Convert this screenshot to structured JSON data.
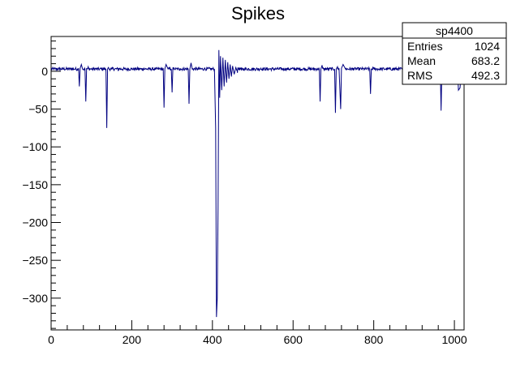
{
  "chart_data": {
    "type": "line",
    "title": "Spikes",
    "xlabel": "",
    "ylabel": "",
    "xlim": [
      0,
      1024
    ],
    "ylim": [
      -342,
      46
    ],
    "x_ticks": [
      0,
      200,
      400,
      600,
      800,
      1000
    ],
    "y_ticks": [
      0,
      -50,
      -100,
      -150,
      -200,
      -250,
      -300
    ],
    "x_tick_labels": [
      "0",
      "200",
      "400",
      "600",
      "800",
      "1000"
    ],
    "y_tick_labels": [
      "0",
      "−50",
      "−100",
      "−150",
      "−200",
      "−250",
      "−300"
    ],
    "grid": false,
    "line_color": "#000080",
    "baseline": 3,
    "series": [
      {
        "points": [
          [
            0,
            3
          ],
          [
            20,
            3
          ],
          [
            40,
            4
          ],
          [
            60,
            3
          ],
          [
            68,
            4
          ],
          [
            70,
            -20
          ],
          [
            72,
            4
          ],
          [
            75,
            9
          ],
          [
            78,
            3
          ],
          [
            84,
            3
          ],
          [
            86,
            -40
          ],
          [
            88,
            4
          ],
          [
            92,
            6
          ],
          [
            100,
            3
          ],
          [
            110,
            4
          ],
          [
            120,
            3
          ],
          [
            130,
            4
          ],
          [
            136,
            3
          ],
          [
            138,
            -75
          ],
          [
            140,
            3
          ],
          [
            142,
            5
          ],
          [
            150,
            3
          ],
          [
            170,
            4
          ],
          [
            200,
            3
          ],
          [
            230,
            4
          ],
          [
            260,
            3
          ],
          [
            278,
            3
          ],
          [
            280,
            -48
          ],
          [
            282,
            3
          ],
          [
            285,
            9
          ],
          [
            290,
            3
          ],
          [
            298,
            3
          ],
          [
            300,
            -28
          ],
          [
            302,
            5
          ],
          [
            306,
            3
          ],
          [
            320,
            4
          ],
          [
            340,
            3
          ],
          [
            342,
            -43
          ],
          [
            344,
            3
          ],
          [
            347,
            11
          ],
          [
            350,
            3
          ],
          [
            380,
            4
          ],
          [
            400,
            3
          ],
          [
            405,
            3
          ],
          [
            408,
            -75
          ],
          [
            410,
            -325
          ],
          [
            412,
            -300
          ],
          [
            414,
            -180
          ],
          [
            416,
            28
          ],
          [
            418,
            -35
          ],
          [
            420,
            20
          ],
          [
            423,
            -25
          ],
          [
            426,
            18
          ],
          [
            429,
            -20
          ],
          [
            432,
            15
          ],
          [
            435,
            -15
          ],
          [
            438,
            12
          ],
          [
            441,
            -10
          ],
          [
            444,
            9
          ],
          [
            447,
            -7
          ],
          [
            450,
            7
          ],
          [
            454,
            -4
          ],
          [
            458,
            5
          ],
          [
            462,
            -2
          ],
          [
            466,
            4
          ],
          [
            472,
            1
          ],
          [
            480,
            3
          ],
          [
            520,
            4
          ],
          [
            560,
            3
          ],
          [
            600,
            4
          ],
          [
            640,
            3
          ],
          [
            665,
            3
          ],
          [
            667,
            -40
          ],
          [
            669,
            3
          ],
          [
            672,
            8
          ],
          [
            676,
            3
          ],
          [
            690,
            4
          ],
          [
            703,
            3
          ],
          [
            705,
            -55
          ],
          [
            707,
            3
          ],
          [
            710,
            6
          ],
          [
            714,
            3
          ],
          [
            718,
            -50
          ],
          [
            720,
            4
          ],
          [
            724,
            9
          ],
          [
            730,
            3
          ],
          [
            750,
            4
          ],
          [
            790,
            3
          ],
          [
            792,
            -30
          ],
          [
            794,
            3
          ],
          [
            798,
            6
          ],
          [
            820,
            3
          ],
          [
            860,
            4
          ],
          [
            900,
            3
          ],
          [
            940,
            4
          ],
          [
            965,
            3
          ],
          [
            967,
            -52
          ],
          [
            969,
            3
          ],
          [
            972,
            8
          ],
          [
            980,
            3
          ],
          [
            1000,
            4
          ],
          [
            1008,
            3
          ],
          [
            1010,
            -25
          ],
          [
            1014,
            -22
          ],
          [
            1018,
            4
          ],
          [
            1024,
            3
          ]
        ]
      }
    ],
    "stats_box": {
      "name": "sp4400",
      "rows": [
        {
          "label": "Entries",
          "value": "1024"
        },
        {
          "label": "Mean",
          "value": "683.2"
        },
        {
          "label": "RMS",
          "value": "492.3"
        }
      ]
    }
  }
}
